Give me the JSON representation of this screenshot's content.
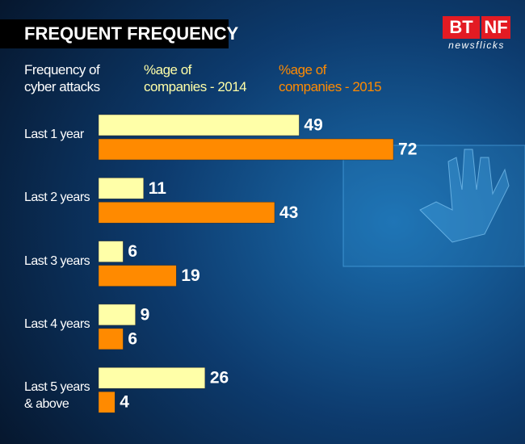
{
  "brand": {
    "left": "BT",
    "right": "NF",
    "tagline": "newsflicks"
  },
  "chart_data": {
    "type": "bar",
    "orientation": "horizontal",
    "title": "FREQUENT FREQUENCY",
    "category_header": "Frequency of cyber attacks",
    "categories": [
      "Last 1 year",
      "Last 2 years",
      "Last 3 years",
      "Last 4 years",
      "Last 5 years & above"
    ],
    "series": [
      {
        "name": "%age of companies - 2014",
        "color": "#ffffa8",
        "values": [
          49,
          11,
          6,
          9,
          26
        ]
      },
      {
        "name": "%age of companies - 2015",
        "color": "#ff8a00",
        "values": [
          72,
          43,
          19,
          6,
          4
        ]
      }
    ]
  }
}
